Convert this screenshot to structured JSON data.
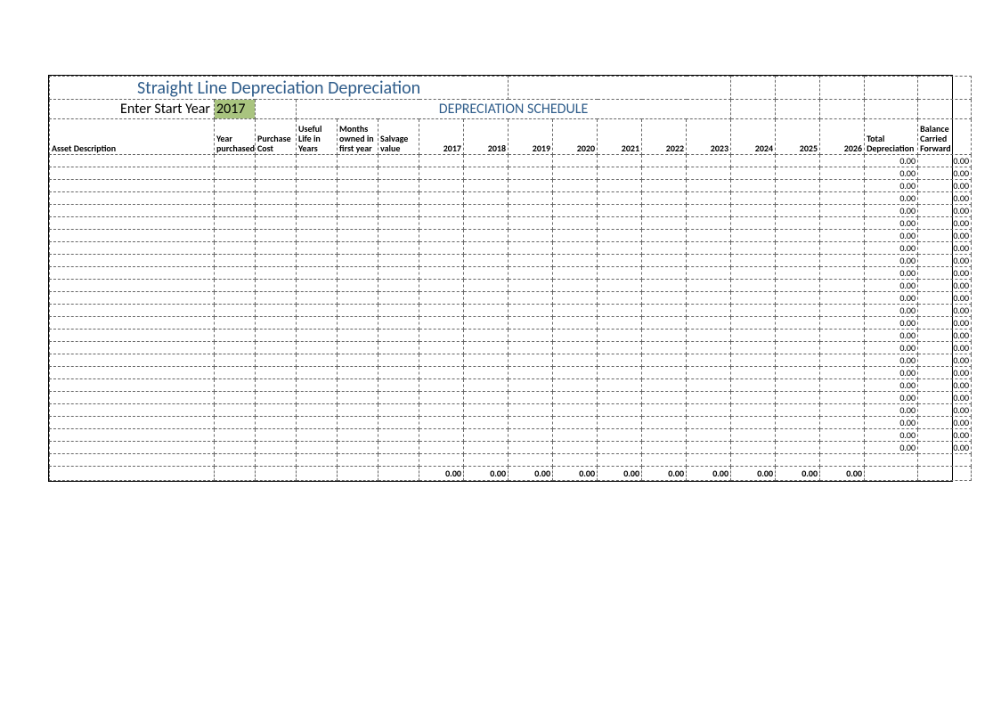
{
  "title": "Straight Line Depreciation Depreciation",
  "start_year_label": "Enter Start Year",
  "start_year_value": "2017",
  "schedule_title": "DEPRECIATION SCHEDULE",
  "columns": {
    "asset_desc": "Asset Description",
    "year_purchased": "Year purchased",
    "purchase_cost": "Purchase Cost",
    "useful_life": "Useful Life in Years",
    "months_owned": "Months owned in first year",
    "salvage": "Salvage value",
    "years": [
      "2017",
      "2018",
      "2019",
      "2020",
      "2021",
      "2022",
      "2023",
      "2024",
      "2025",
      "2026"
    ],
    "total_dep": "Total Depreciation",
    "balance": "Balance Carried Forward"
  },
  "row_count": 24,
  "row_value": "0.00",
  "totals": [
    "0.00",
    "0.00",
    "0.00",
    "0.00",
    "0.00",
    "0.00",
    "0.00",
    "0.00",
    "0.00",
    "0.00"
  ],
  "colors": {
    "title_color": "#2e5c8a",
    "highlight_bg": "#a9c47f",
    "border_color": "#666666"
  }
}
